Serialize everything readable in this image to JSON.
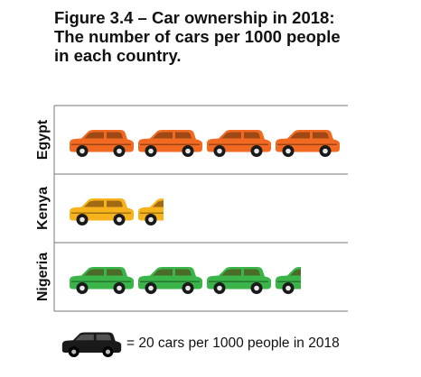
{
  "title": {
    "line1": "Figure 3.4 – Car ownership in 2018:",
    "line2": "The number of cars per 1000 people",
    "line3": "in each country."
  },
  "legend": {
    "icon": "car-icon",
    "text": "= 20 cars per 1000 people in 2018"
  },
  "colors": {
    "Egypt": "#f26a21",
    "Kenya": "#f7b31b",
    "Nigeria": "#3bb54a",
    "legend": "#1a1a1a"
  },
  "chart_data": {
    "type": "pictogram",
    "unit_value": 20,
    "unit_label": "= 20 cars per 1000 people in 2018",
    "categories": [
      "Egypt",
      "Kenya",
      "Nigeria"
    ],
    "icon_counts": [
      4,
      1.5,
      3.5
    ],
    "values": [
      80,
      30,
      70
    ]
  }
}
